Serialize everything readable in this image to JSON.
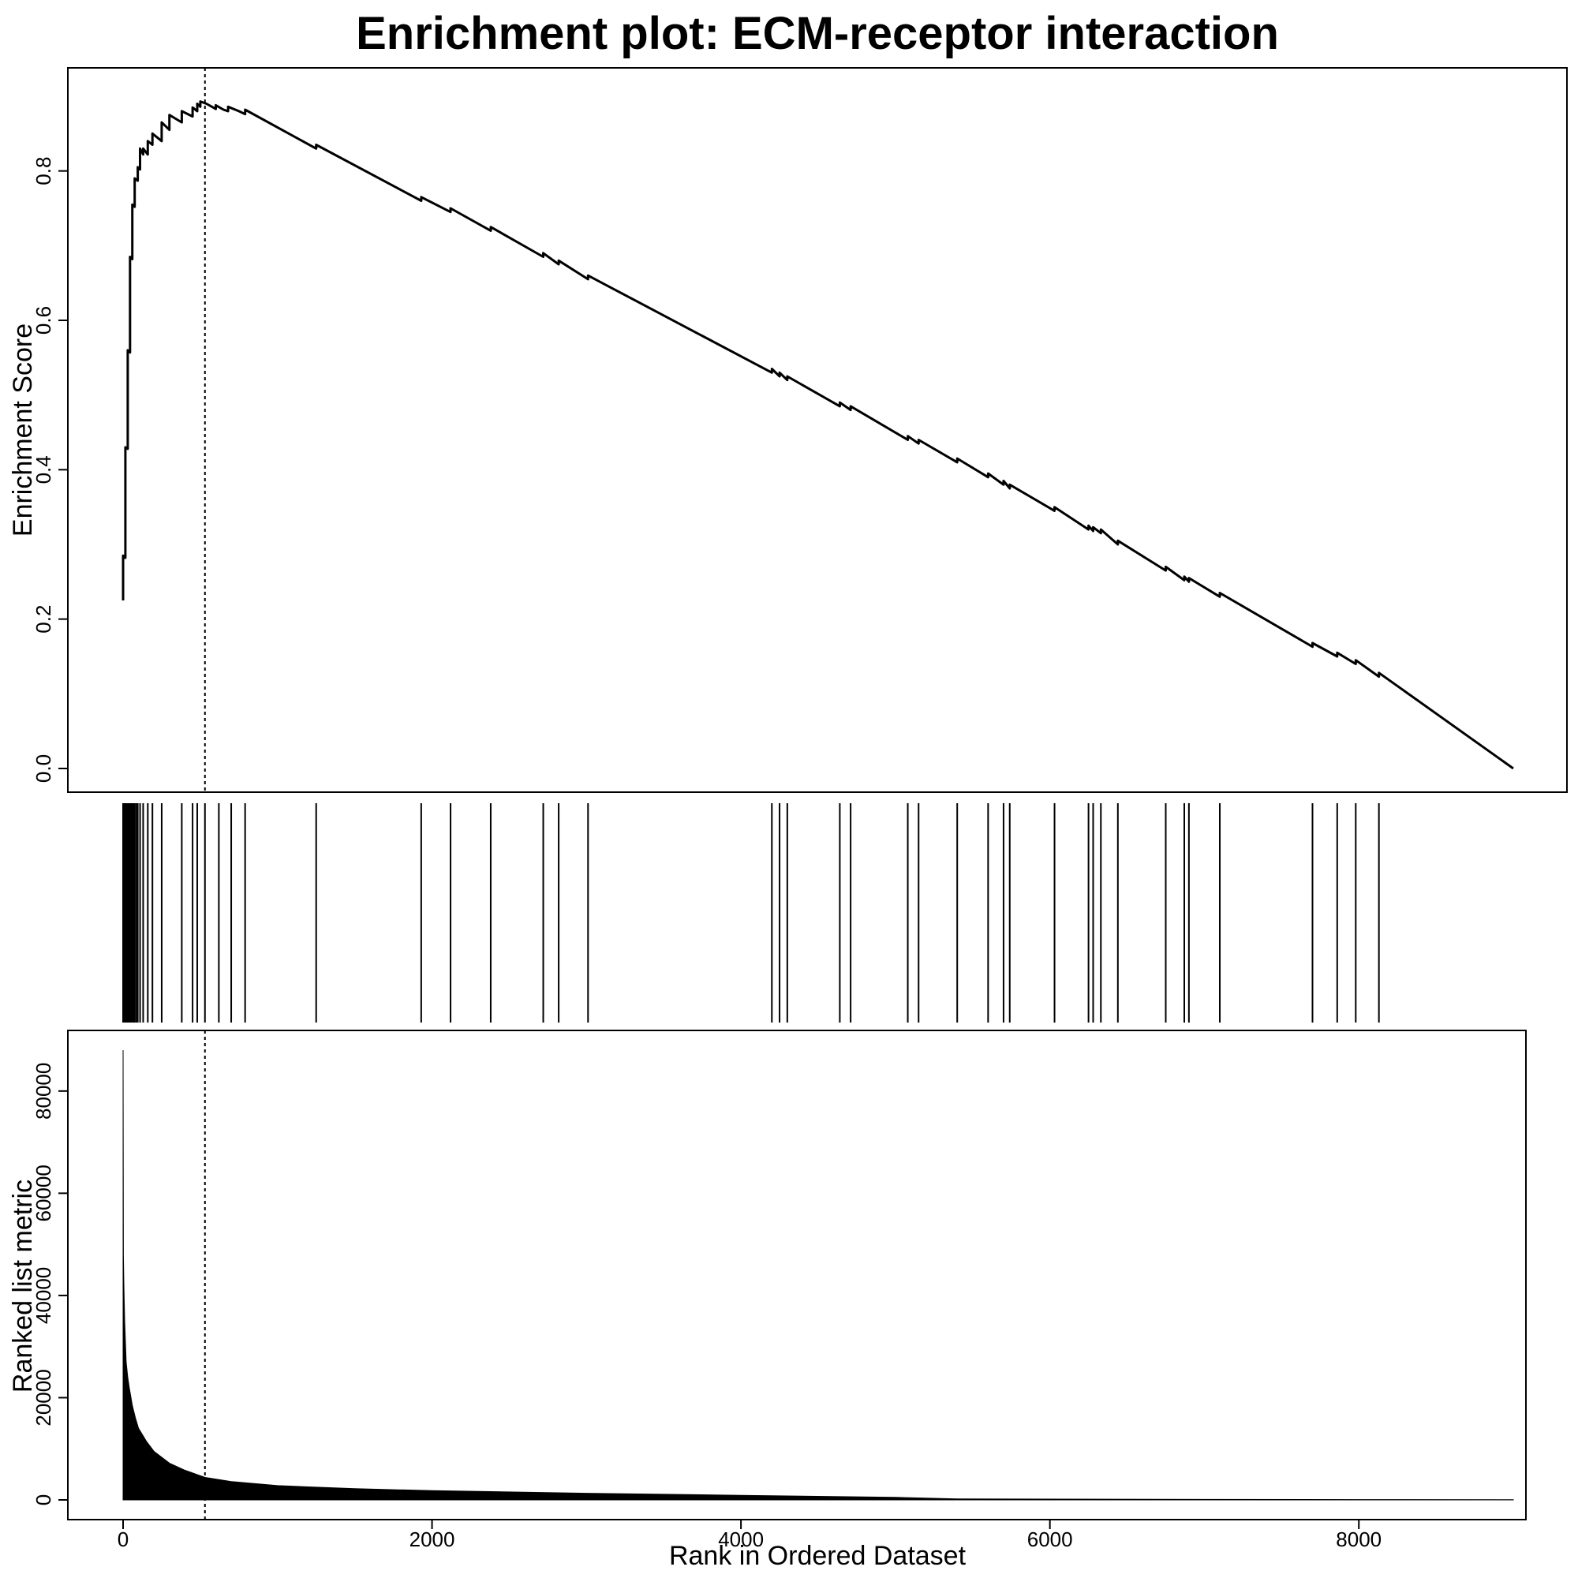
{
  "chart_data": {
    "type": "line",
    "title": "Enrichment plot: ECM-receptor interaction",
    "xlabel": "Rank in Ordered Dataset",
    "xlim": [
      0,
      9000
    ],
    "xticks": [
      0,
      2000,
      4000,
      6000,
      8000
    ],
    "xtick_labels": [
      "0",
      "2000",
      "4000",
      "6000",
      "8000"
    ],
    "leading_edge_rank": 530,
    "enrichment": {
      "ylabel": "Enrichment Score",
      "ylim": [
        0,
        0.9
      ],
      "yticks": [
        0.0,
        0.2,
        0.4,
        0.6,
        0.8
      ],
      "ytick_labels": [
        "0.0",
        "0.2",
        "0.4",
        "0.6",
        "0.8"
      ],
      "series": [
        {
          "x": [
            0,
            0,
            15,
            15,
            30,
            30,
            45,
            45,
            60,
            60,
            75,
            75,
            95,
            95,
            110,
            110,
            130,
            130,
            160,
            160,
            190,
            190,
            250,
            250,
            300,
            300,
            380,
            380,
            450,
            450,
            480,
            480,
            500,
            500,
            540,
            600,
            600,
            650,
            680,
            680,
            750,
            790,
            790,
            1250,
            1250,
            1930,
            1930,
            2120,
            2120,
            2380,
            2380,
            2720,
            2720,
            2820,
            2820,
            3010,
            3010,
            4200,
            4200,
            4250,
            4250,
            4300,
            4300,
            4640,
            4640,
            4710,
            4710,
            5080,
            5080,
            5150,
            5150,
            5400,
            5400,
            5600,
            5600,
            5700,
            5700,
            5740,
            5740,
            6030,
            6030,
            6250,
            6250,
            6280,
            6280,
            6330,
            6330,
            6440,
            6440,
            6750,
            6750,
            6870,
            6870,
            6900,
            6900,
            7100,
            7100,
            7700,
            7700,
            7860,
            7860,
            7980,
            7980,
            8130,
            8130,
            9000
          ],
          "y": [
            0.225,
            0.285,
            0.282,
            0.43,
            0.428,
            0.56,
            0.557,
            0.685,
            0.682,
            0.755,
            0.752,
            0.79,
            0.787,
            0.805,
            0.802,
            0.83,
            0.822,
            0.83,
            0.822,
            0.84,
            0.835,
            0.85,
            0.84,
            0.865,
            0.855,
            0.875,
            0.865,
            0.88,
            0.873,
            0.885,
            0.88,
            0.89,
            0.886,
            0.893,
            0.89,
            0.883,
            0.888,
            0.882,
            0.88,
            0.886,
            0.88,
            0.876,
            0.882,
            0.83,
            0.835,
            0.76,
            0.765,
            0.745,
            0.75,
            0.72,
            0.725,
            0.685,
            0.69,
            0.675,
            0.68,
            0.655,
            0.66,
            0.53,
            0.535,
            0.525,
            0.53,
            0.52,
            0.525,
            0.485,
            0.49,
            0.48,
            0.485,
            0.44,
            0.445,
            0.435,
            0.44,
            0.41,
            0.415,
            0.39,
            0.395,
            0.38,
            0.385,
            0.375,
            0.38,
            0.345,
            0.35,
            0.32,
            0.325,
            0.318,
            0.323,
            0.315,
            0.32,
            0.3,
            0.305,
            0.265,
            0.27,
            0.252,
            0.257,
            0.25,
            0.255,
            0.23,
            0.235,
            0.163,
            0.168,
            0.15,
            0.155,
            0.14,
            0.145,
            0.123,
            0.128,
            0.0
          ]
        }
      ]
    },
    "hits": {
      "type": "rug",
      "positions": [
        0,
        5,
        10,
        15,
        20,
        25,
        30,
        35,
        40,
        45,
        50,
        55,
        60,
        65,
        70,
        75,
        85,
        95,
        110,
        130,
        160,
        190,
        250,
        380,
        450,
        480,
        530,
        620,
        700,
        790,
        1250,
        1930,
        2120,
        2380,
        2720,
        2820,
        3010,
        4200,
        4250,
        4300,
        4640,
        4710,
        5080,
        5150,
        5400,
        5600,
        5700,
        5740,
        6030,
        6250,
        6280,
        6330,
        6440,
        6750,
        6870,
        6900,
        7100,
        7700,
        7860,
        7980,
        8130
      ]
    },
    "ranked_metric": {
      "type": "area",
      "ylabel": "Ranked list metric",
      "ylim": [
        0,
        88000
      ],
      "yticks": [
        0,
        20000,
        40000,
        60000,
        80000
      ],
      "ytick_labels": [
        "0",
        "20000",
        "40000",
        "60000",
        "80000"
      ],
      "x": [
        0,
        2,
        5,
        10,
        20,
        30,
        40,
        60,
        80,
        100,
        150,
        200,
        300,
        400,
        530,
        700,
        1000,
        1500,
        2000,
        3000,
        4000,
        5000,
        5400,
        6000,
        7000,
        8000,
        9000
      ],
      "y": [
        88000,
        48000,
        42000,
        35000,
        27000,
        24000,
        22000,
        18500,
        16000,
        14000,
        11500,
        9500,
        7200,
        5800,
        4400,
        3600,
        2800,
        2200,
        1800,
        1300,
        900,
        500,
        200,
        150,
        100,
        60,
        30
      ]
    }
  }
}
